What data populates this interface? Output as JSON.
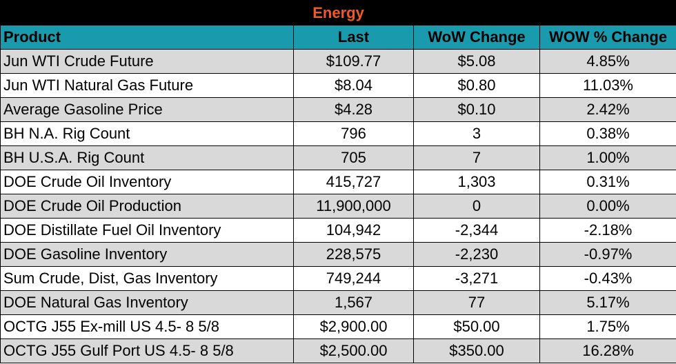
{
  "title": "Energy",
  "columns": [
    "Product",
    "Last",
    "WoW Change",
    "WOW % Change"
  ],
  "rows": [
    {
      "product": "Jun WTI Crude Future",
      "last": "$109.77",
      "wow": "$5.08",
      "pct": "4.85%"
    },
    {
      "product": "Jun WTI Natural Gas Future",
      "last": "$8.04",
      "wow": "$0.80",
      "pct": "11.03%"
    },
    {
      "product": "Average Gasoline Price",
      "last": "$4.28",
      "wow": "$0.10",
      "pct": "2.42%"
    },
    {
      "product": "BH N.A. Rig Count",
      "last": "796",
      "wow": "3",
      "pct": "0.38%"
    },
    {
      "product": "BH U.S.A. Rig Count",
      "last": "705",
      "wow": "7",
      "pct": "1.00%"
    },
    {
      "product": "DOE Crude Oil Inventory",
      "last": "415,727",
      "wow": "1,303",
      "pct": "0.31%"
    },
    {
      "product": "DOE Crude Oil Production",
      "last": "11,900,000",
      "wow": "0",
      "pct": "0.00%"
    },
    {
      "product": "DOE Distillate Fuel Oil Inventory",
      "last": "104,942",
      "wow": "-2,344",
      "pct": "-2.18%"
    },
    {
      "product": "DOE Gasoline Inventory",
      "last": "228,575",
      "wow": "-2,230",
      "pct": "-0.97%"
    },
    {
      "product": "Sum Crude, Dist, Gas Inventory",
      "last": "749,244",
      "wow": "-3,271",
      "pct": "-0.43%"
    },
    {
      "product": "DOE Natural Gas Inventory",
      "last": "1,567",
      "wow": "77",
      "pct": "5.17%"
    },
    {
      "product": "OCTG J55 Ex-mill US 4.5- 8 5/8",
      "last": "$2,900.00",
      "wow": "$50.00",
      "pct": "1.75%"
    },
    {
      "product": "OCTG J55 Gulf Port US 4.5- 8 5/8",
      "last": "$2,500.00",
      "wow": "$350.00",
      "pct": "16.28%"
    }
  ],
  "colors": {
    "title_bg": "#000000",
    "title_text": "#f05a28",
    "header_bg": "#1a9bad",
    "row_alt_bg": "#d9d9d9"
  }
}
